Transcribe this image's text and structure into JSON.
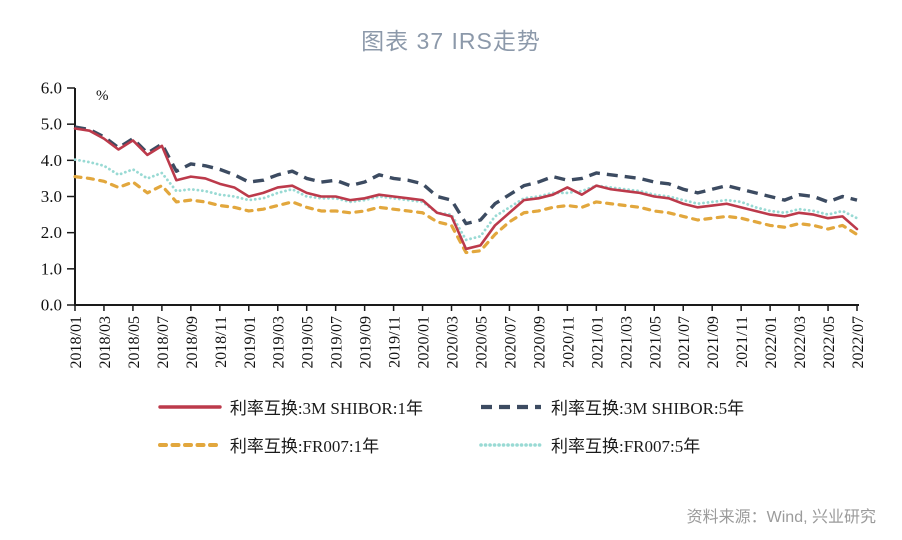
{
  "title": "图表 37 IRS走势",
  "source": "资料来源：Wind, 兴业研究",
  "chart_data": {
    "type": "line",
    "title": "图表 37 IRS走势",
    "xlabel": "",
    "ylabel": "%",
    "ylim": [
      0.0,
      6.0
    ],
    "yticks": [
      "0.0",
      "1.0",
      "2.0",
      "3.0",
      "4.0",
      "5.0",
      "6.0"
    ],
    "grid": false,
    "legend_position": "bottom",
    "axis_color": "#1a1a1a",
    "points_interval": "monthly",
    "categories": [
      "2018/01",
      "2018/03",
      "2018/05",
      "2018/07",
      "2018/09",
      "2018/11",
      "2019/01",
      "2019/03",
      "2019/05",
      "2019/07",
      "2019/09",
      "2019/11",
      "2020/01",
      "2020/03",
      "2020/05",
      "2020/07",
      "2020/09",
      "2020/11",
      "2021/01",
      "2021/03",
      "2021/05",
      "2021/07",
      "2021/09",
      "2021/11",
      "2022/01",
      "2022/03",
      "2022/05",
      "2022/07"
    ],
    "series": [
      {
        "name": "利率互换:3M SHIBOR:1年",
        "color": "#BC3A4B",
        "style": "solid",
        "values": [
          4.88,
          4.82,
          4.6,
          4.3,
          4.55,
          4.15,
          4.4,
          3.45,
          3.55,
          3.5,
          3.35,
          3.25,
          3.0,
          3.1,
          3.25,
          3.3,
          3.1,
          3.0,
          3.0,
          2.9,
          2.95,
          3.05,
          3.0,
          2.95,
          2.9,
          2.55,
          2.45,
          1.55,
          1.65,
          2.2,
          2.55,
          2.9,
          2.95,
          3.05,
          3.25,
          3.05,
          3.3,
          3.2,
          3.15,
          3.1,
          3.0,
          2.95,
          2.8,
          2.7,
          2.75,
          2.8,
          2.7,
          2.6,
          2.5,
          2.45,
          2.55,
          2.5,
          2.4,
          2.45,
          2.1
        ]
      },
      {
        "name": "利率互换:3M SHIBOR:5年",
        "color": "#3C4B61",
        "style": "long-dash",
        "values": [
          4.92,
          4.85,
          4.65,
          4.35,
          4.6,
          4.2,
          4.45,
          3.7,
          3.9,
          3.85,
          3.75,
          3.6,
          3.4,
          3.45,
          3.6,
          3.7,
          3.5,
          3.4,
          3.45,
          3.3,
          3.4,
          3.6,
          3.5,
          3.45,
          3.35,
          3.0,
          2.9,
          2.25,
          2.35,
          2.8,
          3.05,
          3.3,
          3.4,
          3.55,
          3.45,
          3.5,
          3.65,
          3.6,
          3.55,
          3.5,
          3.4,
          3.35,
          3.2,
          3.1,
          3.2,
          3.3,
          3.2,
          3.1,
          3.0,
          2.9,
          3.05,
          3.0,
          2.85,
          3.0,
          2.9
        ]
      },
      {
        "name": "利率互换:FR007:1年",
        "color": "#E2A73D",
        "style": "dash",
        "values": [
          3.55,
          3.5,
          3.42,
          3.25,
          3.4,
          3.1,
          3.3,
          2.85,
          2.9,
          2.85,
          2.75,
          2.7,
          2.6,
          2.65,
          2.75,
          2.85,
          2.7,
          2.6,
          2.6,
          2.55,
          2.6,
          2.7,
          2.65,
          2.6,
          2.55,
          2.3,
          2.2,
          1.45,
          1.5,
          1.95,
          2.3,
          2.55,
          2.6,
          2.7,
          2.75,
          2.7,
          2.85,
          2.8,
          2.75,
          2.7,
          2.6,
          2.55,
          2.45,
          2.35,
          2.4,
          2.45,
          2.4,
          2.3,
          2.2,
          2.15,
          2.25,
          2.2,
          2.1,
          2.2,
          1.95
        ]
      },
      {
        "name": "利率互换:FR007:5年",
        "color": "#99DAD4",
        "style": "dot",
        "values": [
          4.02,
          3.95,
          3.85,
          3.6,
          3.75,
          3.5,
          3.65,
          3.15,
          3.2,
          3.15,
          3.05,
          3.0,
          2.9,
          2.95,
          3.1,
          3.2,
          3.0,
          2.95,
          2.95,
          2.85,
          2.9,
          3.0,
          2.95,
          2.9,
          2.85,
          2.55,
          2.5,
          1.8,
          1.9,
          2.45,
          2.7,
          2.95,
          3.0,
          3.1,
          3.1,
          3.15,
          3.3,
          3.25,
          3.2,
          3.15,
          3.05,
          3.0,
          2.9,
          2.8,
          2.85,
          2.9,
          2.85,
          2.7,
          2.6,
          2.55,
          2.65,
          2.6,
          2.5,
          2.6,
          2.4
        ]
      }
    ]
  }
}
